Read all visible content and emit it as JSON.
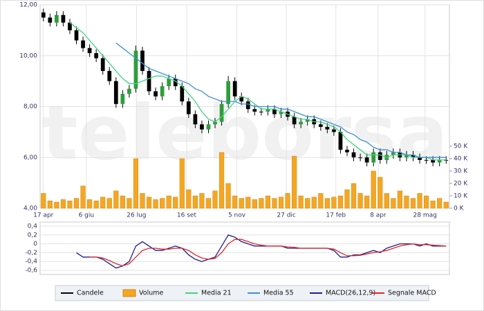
{
  "chart_data": [
    {
      "type": "candlestick",
      "watermark": "teleborsa",
      "xlim": [
        -0.5,
        61.5
      ],
      "xticks": [
        {
          "value": 0,
          "label": "17 apr"
        },
        {
          "value": 6.5,
          "label": "6 giu"
        },
        {
          "value": 14.1,
          "label": "26 lug"
        },
        {
          "value": 21.7,
          "label": "16 set"
        },
        {
          "value": 29.3,
          "label": "5 nov"
        },
        {
          "value": 36.8,
          "label": "27 dic"
        },
        {
          "value": 44.3,
          "label": "17 feb"
        },
        {
          "value": 50.7,
          "label": "8 apr"
        },
        {
          "value": 57.8,
          "label": "28 mag"
        }
      ],
      "ylim": [
        4,
        12
      ],
      "yticks": [
        {
          "value": 4,
          "label": "4,00"
        },
        {
          "value": 6,
          "label": "6,00"
        },
        {
          "value": 8,
          "label": "8,00"
        },
        {
          "value": 10,
          "label": "10,00"
        },
        {
          "value": 12,
          "label": "12,00"
        }
      ],
      "y2lim": [
        0,
        164
      ],
      "y2ticks": [
        {
          "value": 0,
          "label": "0 K"
        },
        {
          "value": 10,
          "label": "10 K"
        },
        {
          "value": 20,
          "label": "20 K"
        },
        {
          "value": 30,
          "label": "30 K"
        },
        {
          "value": 40,
          "label": "40 K"
        },
        {
          "value": 50,
          "label": "50 K"
        }
      ],
      "grid": true,
      "series": [
        {
          "name": "Candele",
          "type": "candlestick",
          "color": "#000000",
          "up_color": "#2e9e3a",
          "open": [
            11.7,
            11.5,
            11.3,
            11.6,
            11.3,
            11.0,
            10.6,
            10.3,
            10.1,
            9.9,
            9.4,
            9.0,
            8.1,
            8.5,
            8.7,
            10.2,
            9.4,
            8.6,
            8.4,
            8.8,
            9.1,
            8.8,
            8.2,
            7.7,
            7.3,
            7.1,
            7.3,
            7.4,
            8.1,
            9.0,
            8.4,
            8.2,
            7.9,
            7.8,
            7.8,
            7.9,
            7.7,
            7.8,
            7.6,
            7.3,
            7.4,
            7.5,
            7.3,
            7.2,
            7.1,
            7.0,
            6.3,
            6.2,
            6.0,
            6.0,
            5.8,
            6.2,
            5.9,
            6.1,
            6.2,
            6.0,
            6.1,
            6.0,
            5.9,
            5.9,
            5.8,
            5.9
          ],
          "high": [
            11.85,
            11.65,
            11.75,
            11.75,
            11.45,
            11.15,
            10.75,
            10.45,
            10.25,
            10.05,
            9.55,
            9.15,
            8.65,
            8.85,
            10.4,
            10.35,
            9.55,
            8.75,
            8.95,
            9.25,
            9.25,
            8.95,
            8.35,
            7.85,
            7.45,
            7.45,
            7.55,
            8.25,
            9.2,
            9.15,
            8.55,
            8.35,
            8.05,
            7.95,
            8.05,
            8.05,
            7.95,
            7.95,
            7.75,
            7.55,
            7.65,
            7.65,
            7.45,
            7.35,
            7.25,
            7.15,
            6.45,
            6.35,
            6.15,
            6.15,
            6.35,
            6.35,
            6.25,
            6.35,
            6.35,
            6.25,
            6.25,
            6.15,
            6.05,
            6.05,
            6.05,
            6.05
          ],
          "low": [
            11.35,
            11.15,
            11.15,
            11.15,
            10.85,
            10.45,
            10.15,
            9.95,
            9.75,
            9.25,
            8.85,
            7.95,
            7.95,
            8.35,
            8.55,
            9.25,
            8.45,
            8.25,
            8.25,
            8.65,
            8.65,
            8.05,
            7.55,
            7.15,
            6.95,
            6.95,
            7.15,
            7.25,
            7.95,
            8.25,
            8.05,
            7.75,
            7.65,
            7.65,
            7.65,
            7.55,
            7.55,
            7.45,
            7.15,
            7.15,
            7.25,
            7.15,
            7.05,
            6.95,
            6.85,
            6.15,
            6.05,
            5.85,
            5.85,
            5.65,
            5.65,
            5.75,
            5.75,
            5.95,
            5.85,
            5.85,
            5.85,
            5.75,
            5.75,
            5.65,
            5.65,
            5.75
          ],
          "close": [
            11.5,
            11.3,
            11.6,
            11.3,
            11.0,
            10.6,
            10.3,
            10.1,
            9.9,
            9.4,
            9.0,
            8.1,
            8.5,
            8.7,
            10.2,
            9.4,
            8.6,
            8.4,
            8.8,
            9.1,
            8.8,
            8.2,
            7.7,
            7.3,
            7.1,
            7.3,
            7.4,
            8.1,
            9.0,
            8.4,
            8.2,
            7.9,
            7.8,
            7.8,
            7.9,
            7.7,
            7.8,
            7.6,
            7.3,
            7.4,
            7.5,
            7.3,
            7.2,
            7.1,
            7.0,
            6.3,
            6.2,
            6.0,
            6.0,
            5.8,
            6.2,
            5.9,
            6.1,
            6.2,
            6.0,
            6.1,
            6.0,
            5.9,
            5.9,
            5.8,
            5.9,
            5.9
          ]
        },
        {
          "name": "Volume",
          "type": "bar",
          "axis": "y2",
          "color": "#f5a623",
          "values": [
            12,
            6,
            5,
            7,
            6,
            8,
            18,
            7,
            6,
            9,
            8,
            14,
            10,
            8,
            40,
            12,
            9,
            7,
            8,
            10,
            9,
            40,
            15,
            10,
            12,
            8,
            14,
            45,
            20,
            10,
            8,
            9,
            7,
            8,
            10,
            8,
            9,
            12,
            42,
            10,
            8,
            9,
            12,
            8,
            9,
            10,
            15,
            20,
            12,
            10,
            30,
            25,
            12,
            8,
            14,
            10,
            8,
            12,
            10,
            6,
            8,
            5
          ]
        },
        {
          "name": "Media 21",
          "type": "line",
          "color": "#3fd47f",
          "values": [
            null,
            null,
            null,
            null,
            11.3,
            11.1,
            10.9,
            10.6,
            10.3,
            10.0,
            9.7,
            9.4,
            9.1,
            8.9,
            8.9,
            9.0,
            9.1,
            9.2,
            9.2,
            9.1,
            9.0,
            8.8,
            8.5,
            8.2,
            7.8,
            7.5,
            7.4,
            7.6,
            7.9,
            8.2,
            8.4,
            8.3,
            8.1,
            7.9,
            7.9,
            7.9,
            7.8,
            7.7,
            7.6,
            7.5,
            7.5,
            7.4,
            7.4,
            7.3,
            7.2,
            7.0,
            6.7,
            6.5,
            6.3,
            6.1,
            6.1,
            6.1,
            6.0,
            6.1,
            6.1,
            6.1,
            6.0,
            6.0,
            6.0,
            5.9,
            5.9,
            5.9
          ]
        },
        {
          "name": "Media 55",
          "type": "line",
          "color": "#3a8fdc",
          "values": [
            null,
            null,
            null,
            null,
            null,
            null,
            null,
            null,
            null,
            null,
            null,
            10.5,
            10.3,
            10.1,
            9.9,
            9.7,
            9.5,
            9.4,
            9.3,
            9.2,
            9.1,
            9.0,
            8.9,
            8.7,
            8.6,
            8.4,
            8.3,
            8.2,
            8.2,
            8.2,
            8.1,
            8.1,
            8.0,
            8.0,
            8.0,
            8.0,
            7.9,
            7.9,
            7.8,
            7.7,
            7.6,
            7.6,
            7.5,
            7.4,
            7.3,
            7.2,
            7.0,
            6.9,
            6.7,
            6.6,
            6.4,
            6.3,
            6.3,
            6.2,
            6.2,
            6.1,
            6.1,
            6.0,
            6.0,
            6.0,
            6.0,
            6.0
          ]
        }
      ]
    },
    {
      "type": "line",
      "xlim": [
        -0.5,
        61.5
      ],
      "ylim": [
        -0.6,
        0.4
      ],
      "yticks": [
        {
          "value": -0.6,
          "label": "-0,6"
        },
        {
          "value": -0.4,
          "label": "-0,4"
        },
        {
          "value": -0.2,
          "label": "-0,2"
        },
        0,
        {
          "value": 0.2,
          "label": "0,2"
        },
        {
          "value": 0.4,
          "label": "0,4"
        }
      ],
      "grid": true,
      "series": [
        {
          "name": "MACD(26,12,9)",
          "color": "#1c1c8f",
          "values": [
            null,
            null,
            null,
            null,
            null,
            -0.2,
            -0.3,
            -0.3,
            -0.3,
            -0.35,
            -0.45,
            -0.55,
            -0.5,
            -0.4,
            -0.05,
            0.05,
            -0.05,
            -0.15,
            -0.15,
            -0.1,
            -0.05,
            -0.1,
            -0.25,
            -0.35,
            -0.4,
            -0.35,
            -0.3,
            -0.05,
            0.2,
            0.15,
            0.05,
            0,
            -0.05,
            -0.05,
            -0.05,
            -0.05,
            -0.05,
            -0.1,
            -0.1,
            -0.1,
            -0.1,
            -0.1,
            -0.1,
            -0.1,
            -0.15,
            -0.3,
            -0.3,
            -0.25,
            -0.25,
            -0.2,
            -0.15,
            -0.2,
            -0.1,
            -0.05,
            0,
            0,
            0,
            -0.05,
            0,
            -0.05,
            -0.05,
            -0.05
          ]
        },
        {
          "name": "Segnale MACD",
          "color": "#e02424",
          "values": [
            null,
            null,
            null,
            null,
            null,
            null,
            null,
            -0.3,
            -0.3,
            -0.32,
            -0.38,
            -0.45,
            -0.5,
            -0.45,
            -0.3,
            -0.15,
            -0.1,
            -0.1,
            -0.12,
            -0.12,
            -0.1,
            -0.1,
            -0.15,
            -0.25,
            -0.32,
            -0.35,
            -0.33,
            -0.2,
            0,
            0.1,
            0.1,
            0.05,
            0,
            -0.03,
            -0.05,
            -0.05,
            -0.05,
            -0.07,
            -0.08,
            -0.1,
            -0.1,
            -0.1,
            -0.1,
            -0.1,
            -0.12,
            -0.2,
            -0.27,
            -0.27,
            -0.26,
            -0.23,
            -0.2,
            -0.18,
            -0.15,
            -0.1,
            -0.05,
            -0.02,
            0,
            -0.02,
            -0.02,
            -0.03,
            -0.04,
            -0.05
          ]
        }
      ]
    }
  ]
}
